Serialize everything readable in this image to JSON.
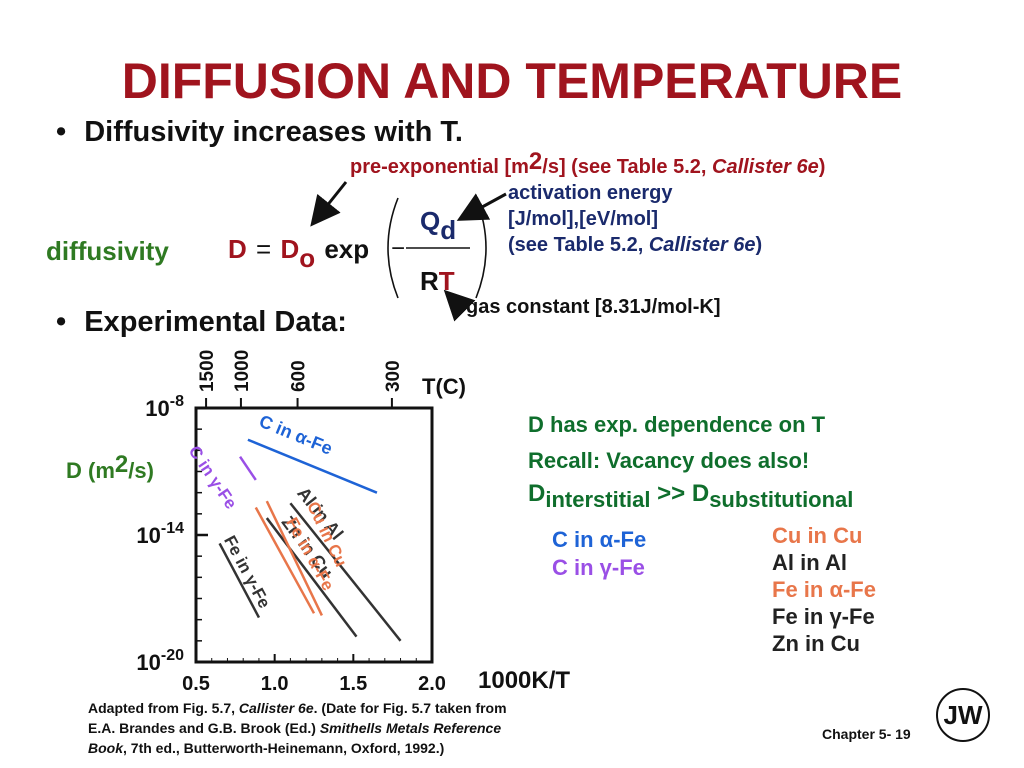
{
  "title": "DIFFUSION AND TEMPERATURE",
  "bullets": {
    "dot": "•",
    "first": "Diffusivity increases with T.",
    "second": "Experimental Data:"
  },
  "equation": {
    "label": "diffusivity",
    "D": "D",
    "equals": "=",
    "D0_main": "D",
    "D0_sub": "o",
    "exp": "exp",
    "minus": "−",
    "Q": "Q",
    "Q_sub": "d",
    "R": "R",
    "T": "T"
  },
  "annotations": {
    "preexp_a": "pre-exponential [m",
    "preexp_sup": "2",
    "preexp_b": "/s] (see Table 5.2, ",
    "preexp_italic": "Callister 6e",
    "preexp_c": ")",
    "act_1": "activation energy",
    "act_2": "[J/mol],[eV/mol]",
    "act_3a": "(see Table 5.2, ",
    "act_3_italic": "Callister 6e",
    "act_3b": ")",
    "gas": "gas constant [8.31J/mol-K]"
  },
  "chart_data": {
    "type": "line",
    "x_axis_label": "1000K/T",
    "x_ticks": [
      "0.5",
      "1.0",
      "1.5",
      "2.0"
    ],
    "x_range": [
      0.5,
      2.0
    ],
    "top_axis_label": "T(C)",
    "top_ticks": [
      "1500",
      "1000",
      "600",
      "300"
    ],
    "y_axis_label_a": "D (m",
    "y_axis_label_sup": "2",
    "y_axis_label_b": "/s)",
    "y_ticks": [
      {
        "base": "10",
        "exp": "-8"
      },
      {
        "base": "10",
        "exp": "-14"
      },
      {
        "base": "10",
        "exp": "-20"
      }
    ],
    "y_range_log10": [
      -20,
      -8
    ],
    "series": [
      {
        "name": "C in α-Fe",
        "color": "#1e63d6",
        "x": [
          0.83,
          1.65
        ],
        "log10_y": [
          -9.5,
          -12.0
        ]
      },
      {
        "name": "C in γ-Fe",
        "color": "#9a4fe6",
        "x": [
          0.78,
          0.88
        ],
        "log10_y": [
          -10.3,
          -11.4
        ]
      },
      {
        "name": "Zn in Cu",
        "color": "#333333",
        "x": [
          0.95,
          1.52
        ],
        "log10_y": [
          -13.2,
          -18.8
        ]
      },
      {
        "name": "Al in Al",
        "color": "#333333",
        "x": [
          1.1,
          1.8
        ],
        "log10_y": [
          -12.5,
          -19.0
        ]
      },
      {
        "name": "Cu in Cu",
        "color": "#e8764a",
        "x": [
          0.95,
          1.3
        ],
        "log10_y": [
          -12.4,
          -17.8
        ]
      },
      {
        "name": "Fe in α-Fe",
        "color": "#e8764a",
        "x": [
          0.88,
          1.25
        ],
        "log10_y": [
          -12.7,
          -17.7
        ]
      },
      {
        "name": "Fe in γ-Fe",
        "color": "#333333",
        "x": [
          0.65,
          0.9
        ],
        "log10_y": [
          -14.4,
          -17.9
        ]
      }
    ]
  },
  "notes": {
    "line1": "D has exp. dependence on T",
    "line2": "Recall:  Vacancy does also!",
    "line3_a": "D",
    "line3_b": "interstitial",
    "line3_c": " >> D",
    "line3_d": "substitutional"
  },
  "legend_left": [
    {
      "label": "C in α-Fe",
      "color": "#1e63d6"
    },
    {
      "label": "C in γ-Fe",
      "color": "#9a4fe6"
    }
  ],
  "legend_right": [
    {
      "label": "Cu in Cu",
      "color": "#e8764a"
    },
    {
      "label": "Al in Al",
      "color": "#222222"
    },
    {
      "label": "Fe in α-Fe",
      "color": "#e8764a"
    },
    {
      "label": "Fe in γ-Fe",
      "color": "#222222"
    },
    {
      "label": "Zn in Cu",
      "color": "#222222"
    }
  ],
  "caption": {
    "l1a": "Adapted from Fig. 5.7, ",
    "l1_italic": "Callister 6e",
    "l1b": ".  (Date for Fig. 5.7 taken from",
    "l2a": "E.A. Brandes and G.B. Brook (Ed.) ",
    "l2_italic": "Smithells Metals Reference",
    "l3_italic": "Book",
    "l3b": ", 7th ed., Butterworth-Heinemann, Oxford, 1992.)"
  },
  "footer": {
    "chapter": "Chapter 5- 19"
  },
  "logo_text": "JW"
}
